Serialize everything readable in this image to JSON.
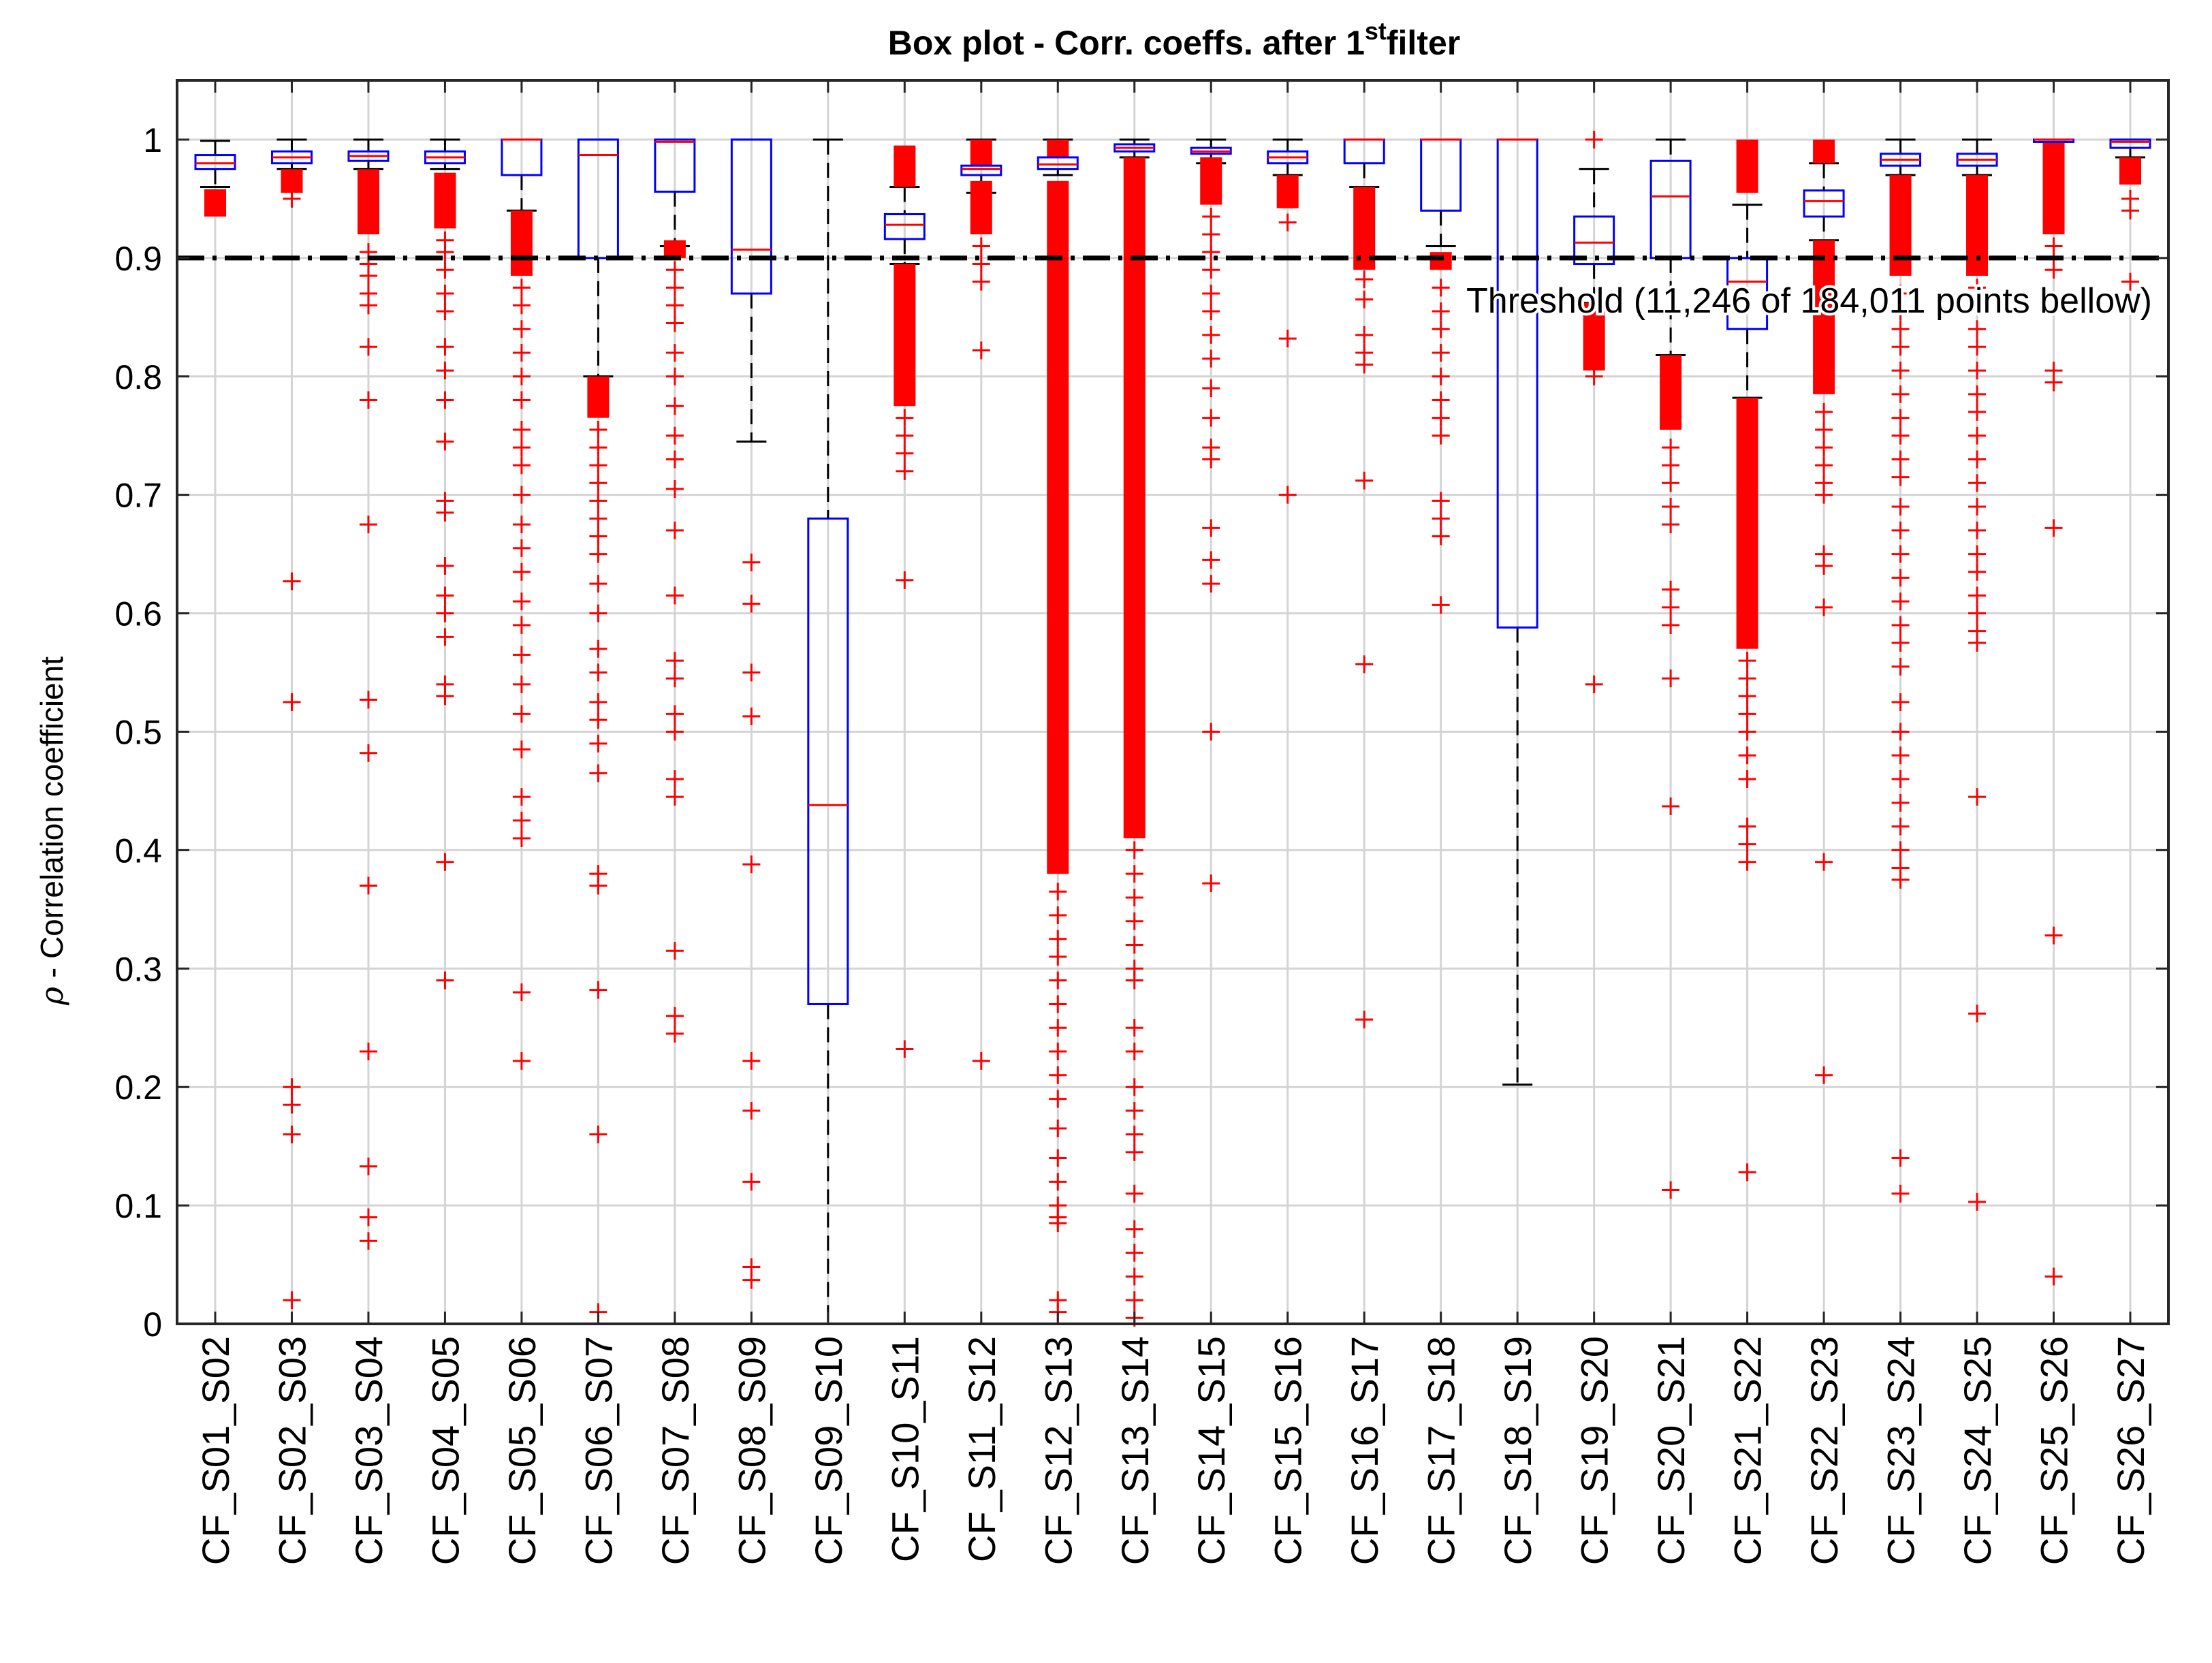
{
  "chart_data": {
    "type": "box",
    "title_main": "Box plot - Corr. coeffs. after 1",
    "title_sup": "st",
    "title_tail": "filter",
    "xlabel": "",
    "ylabel_symbol": "ρ",
    "ylabel_text": " - Correlation coefficient",
    "ylim": [
      0,
      1.05
    ],
    "yticks": [
      0,
      0.1,
      0.2,
      0.3,
      0.4,
      0.5,
      0.6,
      0.7,
      0.8,
      0.9,
      1
    ],
    "ytick_labels": [
      "0",
      "0.1",
      "0.2",
      "0.3",
      "0.4",
      "0.5",
      "0.6",
      "0.7",
      "0.8",
      "0.9",
      "1"
    ],
    "grid": true,
    "threshold": {
      "value": 0.9,
      "label": "Threshold (11,246 of 184,011 points bellow)"
    },
    "colors": {
      "box": "#0000ff",
      "median": "#ff0000",
      "outlier": "#ff0000",
      "whisker": "#000000",
      "grid": "#d4d4d4",
      "axis": "#262626",
      "threshold": "#000000"
    },
    "categories": [
      "CF_S01_S02",
      "CF_S02_S03",
      "CF_S03_S04",
      "CF_S04_S05",
      "CF_S05_S06",
      "CF_S06_S07",
      "CF_S07_S08",
      "CF_S08_S09",
      "CF_S09_S10",
      "CF_S10_S11",
      "CF_S11_S12",
      "CF_S12_S13",
      "CF_S13_S14",
      "CF_S14_S15",
      "CF_S15_S16",
      "CF_S16_S17",
      "CF_S17_S18",
      "CF_S18_S19",
      "CF_S19_S20",
      "CF_S20_S21",
      "CF_S21_S22",
      "CF_S22_S23",
      "CF_S23_S24",
      "CF_S24_S25",
      "CF_S25_S26",
      "CF_S26_S27"
    ],
    "boxes": [
      {
        "q1": 0.975,
        "median": 0.98,
        "q3": 0.987,
        "wlo": 0.96,
        "whi": 0.999,
        "dense": [
          [
            0.935,
            0.958
          ]
        ],
        "outliers": []
      },
      {
        "q1": 0.98,
        "median": 0.985,
        "q3": 0.99,
        "wlo": 0.975,
        "whi": 1.0,
        "dense": [
          [
            0.955,
            0.975
          ]
        ],
        "outliers": [
          0.95,
          0.627,
          0.525,
          0.2,
          0.185,
          0.16,
          0.02
        ]
      },
      {
        "q1": 0.982,
        "median": 0.986,
        "q3": 0.99,
        "wlo": 0.975,
        "whi": 1.0,
        "dense": [
          [
            0.92,
            0.975
          ]
        ],
        "outliers": [
          0.905,
          0.895,
          0.885,
          0.87,
          0.86,
          0.825,
          0.78,
          0.675,
          0.527,
          0.482,
          0.37,
          0.23,
          0.133,
          0.09,
          0.07
        ]
      },
      {
        "q1": 0.98,
        "median": 0.985,
        "q3": 0.99,
        "wlo": 0.975,
        "whi": 1.0,
        "dense": [
          [
            0.925,
            0.972
          ]
        ],
        "outliers": [
          0.915,
          0.905,
          0.89,
          0.87,
          0.855,
          0.825,
          0.805,
          0.78,
          0.745,
          0.695,
          0.685,
          0.64,
          0.615,
          0.6,
          0.58,
          0.54,
          0.53,
          0.39,
          0.29
        ]
      },
      {
        "q1": 0.97,
        "median": 1.0,
        "q3": 1.0,
        "wlo": 0.94,
        "whi": 1.0,
        "dense": [
          [
            0.885,
            0.94
          ]
        ],
        "outliers": [
          0.875,
          0.86,
          0.84,
          0.82,
          0.8,
          0.78,
          0.755,
          0.74,
          0.725,
          0.7,
          0.675,
          0.655,
          0.635,
          0.61,
          0.59,
          0.565,
          0.54,
          0.515,
          0.485,
          0.445,
          0.425,
          0.41,
          0.28,
          0.222
        ]
      },
      {
        "q1": 0.9,
        "median": 0.987,
        "q3": 1.0,
        "wlo": 0.8,
        "whi": 1.0,
        "dense": [
          [
            0.765,
            0.8
          ]
        ],
        "outliers": [
          0.755,
          0.74,
          0.725,
          0.71,
          0.695,
          0.68,
          0.665,
          0.65,
          0.625,
          0.6,
          0.57,
          0.55,
          0.525,
          0.51,
          0.49,
          0.465,
          0.38,
          0.37,
          0.282,
          0.16,
          0.01
        ]
      },
      {
        "q1": 0.956,
        "median": 0.998,
        "q3": 1.0,
        "wlo": 0.91,
        "whi": 1.0,
        "dense": [
          [
            0.9,
            0.915
          ]
        ],
        "outliers": [
          0.89,
          0.875,
          0.86,
          0.845,
          0.82,
          0.8,
          0.775,
          0.75,
          0.73,
          0.705,
          0.67,
          0.615,
          0.56,
          0.545,
          0.515,
          0.5,
          0.46,
          0.445,
          0.315,
          0.26,
          0.245
        ]
      },
      {
        "q1": 0.87,
        "median": 0.907,
        "q3": 1.0,
        "wlo": 0.745,
        "whi": 1.0,
        "dense": [],
        "outliers": [
          0.643,
          0.608,
          0.55,
          0.513,
          0.388,
          0.222,
          0.18,
          0.12,
          0.048,
          0.037
        ]
      },
      {
        "q1": 0.27,
        "median": 0.438,
        "q3": 0.68,
        "wlo": 0.0,
        "whi": 1.0,
        "dense": [],
        "outliers": []
      },
      {
        "q1": 0.916,
        "median": 0.928,
        "q3": 0.937,
        "wlo": 0.895,
        "whi": 0.96,
        "dense": [
          [
            0.96,
            0.995
          ],
          [
            0.775,
            0.895
          ]
        ],
        "outliers": [
          0.765,
          0.75,
          0.735,
          0.72,
          0.628,
          0.232
        ]
      },
      {
        "q1": 0.97,
        "median": 0.975,
        "q3": 0.978,
        "wlo": 0.955,
        "whi": 1.0,
        "dense": [
          [
            0.978,
            1.0
          ],
          [
            0.92,
            0.965
          ]
        ],
        "outliers": [
          0.91,
          0.895,
          0.88,
          0.822,
          0.222
        ]
      },
      {
        "q1": 0.975,
        "median": 0.979,
        "q3": 0.985,
        "wlo": 0.97,
        "whi": 1.0,
        "dense": [
          [
            0.985,
            1.0
          ],
          [
            0.38,
            0.965
          ]
        ],
        "outliers": [
          0.365,
          0.345,
          0.325,
          0.31,
          0.29,
          0.27,
          0.25,
          0.23,
          0.21,
          0.19,
          0.165,
          0.14,
          0.12,
          0.1,
          0.09,
          0.085,
          0.02,
          0.01
        ]
      },
      {
        "q1": 0.99,
        "median": 0.993,
        "q3": 0.996,
        "wlo": 0.985,
        "whi": 1.0,
        "dense": [
          [
            0.41,
            0.985
          ]
        ],
        "outliers": [
          0.4,
          0.38,
          0.36,
          0.34,
          0.32,
          0.3,
          0.29,
          0.25,
          0.23,
          0.2,
          0.18,
          0.16,
          0.145,
          0.11,
          0.08,
          0.06,
          0.04,
          0.02,
          0.005
        ]
      },
      {
        "q1": 0.988,
        "median": 0.99,
        "q3": 0.993,
        "wlo": 0.98,
        "whi": 1.0,
        "dense": [
          [
            0.945,
            0.985
          ]
        ],
        "outliers": [
          0.935,
          0.92,
          0.905,
          0.89,
          0.87,
          0.855,
          0.835,
          0.815,
          0.79,
          0.765,
          0.74,
          0.73,
          0.672,
          0.645,
          0.625,
          0.5,
          0.372
        ]
      },
      {
        "q1": 0.98,
        "median": 0.985,
        "q3": 0.99,
        "wlo": 0.97,
        "whi": 1.0,
        "dense": [
          [
            0.942,
            0.97
          ]
        ],
        "outliers": [
          0.93,
          0.832,
          0.7
        ]
      },
      {
        "q1": 0.98,
        "median": 1.0,
        "q3": 1.0,
        "wlo": 0.96,
        "whi": 1.0,
        "dense": [
          [
            0.89,
            0.96
          ]
        ],
        "outliers": [
          0.882,
          0.865,
          0.835,
          0.82,
          0.81,
          0.712,
          0.557,
          0.257
        ]
      },
      {
        "q1": 0.94,
        "median": 1.0,
        "q3": 1.0,
        "wlo": 0.91,
        "whi": 1.0,
        "dense": [
          [
            0.89,
            0.905
          ]
        ],
        "outliers": [
          0.875,
          0.855,
          0.84,
          0.82,
          0.8,
          0.78,
          0.765,
          0.75,
          0.695,
          0.68,
          0.665,
          0.607
        ]
      },
      {
        "q1": 0.588,
        "median": 1.0,
        "q3": 1.0,
        "wlo": 0.202,
        "whi": 1.0,
        "dense": [],
        "outliers": []
      },
      {
        "q1": 0.895,
        "median": 0.913,
        "q3": 0.935,
        "wlo": 0.862,
        "whi": 0.975,
        "dense": [
          [
            0.805,
            0.862
          ]
        ],
        "outliers": [
          1.0,
          0.832,
          0.822,
          0.81,
          0.8,
          0.54
        ]
      },
      {
        "q1": 0.9,
        "median": 0.952,
        "q3": 0.982,
        "wlo": 0.818,
        "whi": 1.0,
        "dense": [
          [
            0.755,
            0.818
          ]
        ],
        "outliers": [
          0.74,
          0.725,
          0.71,
          0.69,
          0.675,
          0.62,
          0.605,
          0.59,
          0.545,
          0.437,
          0.113
        ]
      },
      {
        "q1": 0.84,
        "median": 0.88,
        "q3": 0.9,
        "wlo": 0.782,
        "whi": 0.945,
        "dense": [
          [
            0.955,
            1.0
          ],
          [
            0.57,
            0.782
          ]
        ],
        "outliers": [
          0.56,
          0.545,
          0.53,
          0.515,
          0.5,
          0.48,
          0.46,
          0.42,
          0.405,
          0.39,
          0.128
        ]
      },
      {
        "q1": 0.935,
        "median": 0.948,
        "q3": 0.957,
        "wlo": 0.915,
        "whi": 0.98,
        "dense": [
          [
            0.98,
            1.0
          ],
          [
            0.785,
            0.915
          ]
        ],
        "outliers": [
          0.77,
          0.755,
          0.74,
          0.725,
          0.71,
          0.7,
          0.65,
          0.64,
          0.605,
          0.39,
          0.21
        ]
      },
      {
        "q1": 0.978,
        "median": 0.983,
        "q3": 0.988,
        "wlo": 0.97,
        "whi": 1.0,
        "dense": [
          [
            0.885,
            0.97
          ]
        ],
        "outliers": [
          0.87,
          0.855,
          0.84,
          0.825,
          0.805,
          0.785,
          0.765,
          0.75,
          0.73,
          0.715,
          0.69,
          0.67,
          0.65,
          0.63,
          0.61,
          0.59,
          0.575,
          0.555,
          0.525,
          0.5,
          0.48,
          0.46,
          0.44,
          0.42,
          0.4,
          0.385,
          0.375,
          0.14,
          0.11
        ]
      },
      {
        "q1": 0.978,
        "median": 0.983,
        "q3": 0.988,
        "wlo": 0.97,
        "whi": 1.0,
        "dense": [
          [
            0.885,
            0.97
          ]
        ],
        "outliers": [
          0.875,
          0.86,
          0.84,
          0.825,
          0.805,
          0.785,
          0.77,
          0.75,
          0.73,
          0.71,
          0.69,
          0.67,
          0.65,
          0.635,
          0.615,
          0.6,
          0.585,
          0.575,
          0.445,
          0.262,
          0.103
        ]
      },
      {
        "q1": 0.998,
        "median": 1.0,
        "q3": 1.0,
        "wlo": 0.998,
        "whi": 1.0,
        "dense": [
          [
            0.92,
            0.998
          ]
        ],
        "outliers": [
          0.91,
          0.9,
          0.89,
          0.805,
          0.795,
          0.672,
          0.328,
          0.04
        ]
      },
      {
        "q1": 0.993,
        "median": 0.998,
        "q3": 1.0,
        "wlo": 0.985,
        "whi": 1.0,
        "dense": [
          [
            0.962,
            0.985
          ]
        ],
        "outliers": [
          0.95,
          0.94,
          0.88
        ]
      }
    ]
  }
}
